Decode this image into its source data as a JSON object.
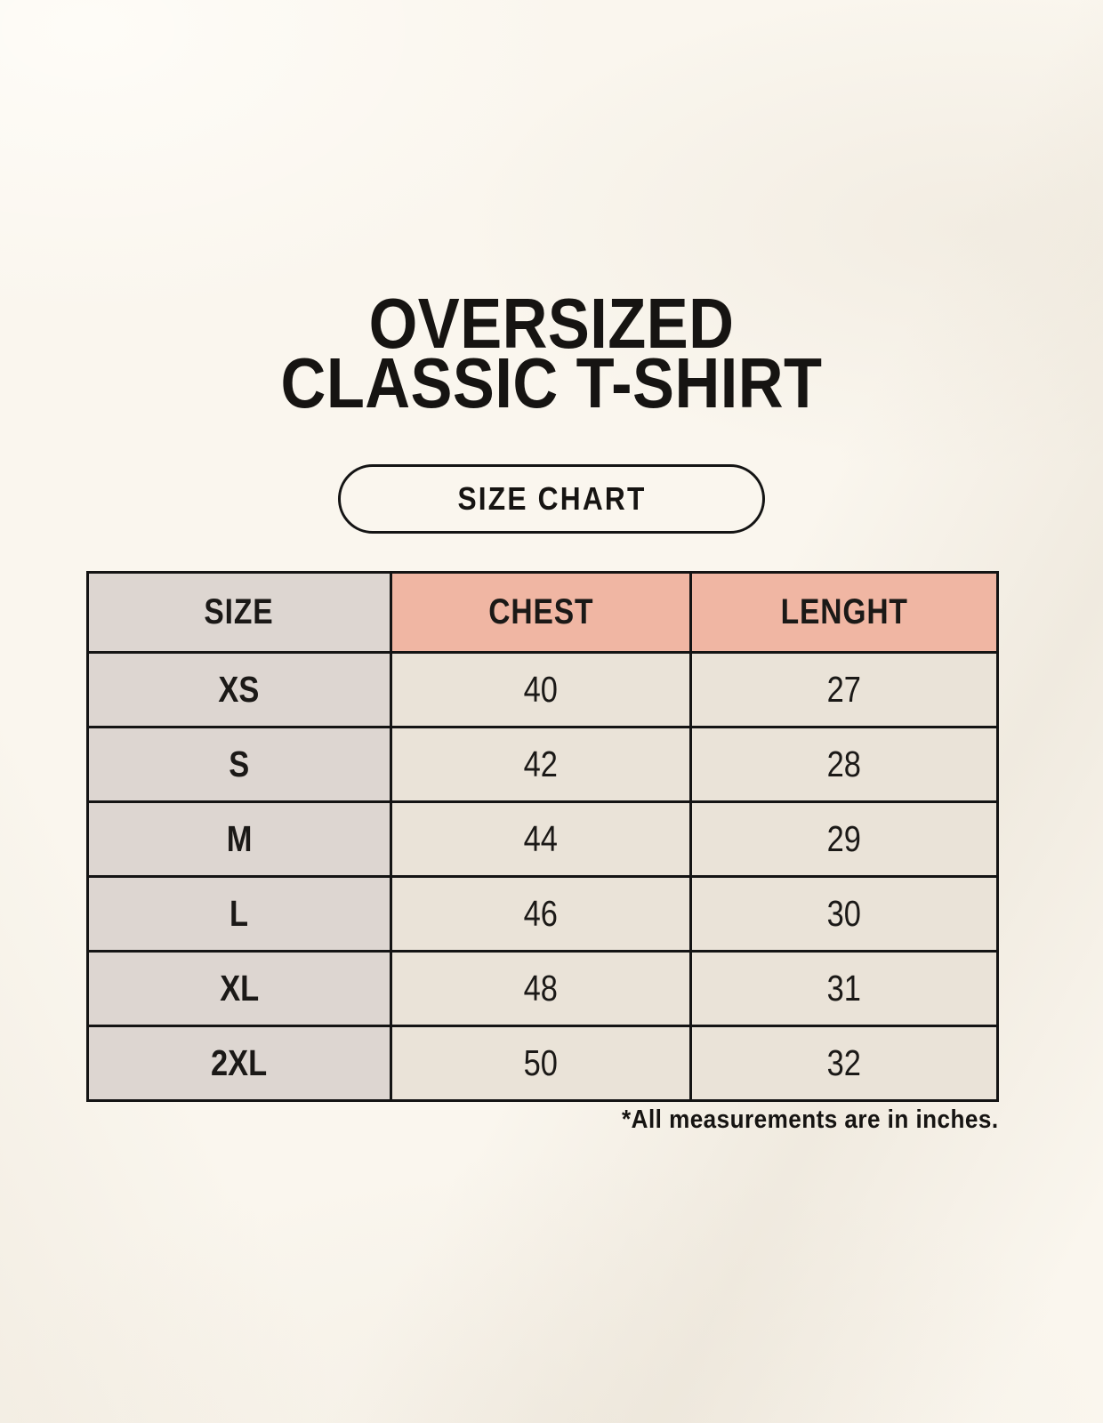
{
  "title": {
    "line1": "OVERSIZED",
    "line2": "CLASSIC T-SHIRT"
  },
  "badge": {
    "label": "SIZE CHART"
  },
  "size_table": {
    "columns": [
      {
        "label": "SIZE",
        "accent": false
      },
      {
        "label": "CHEST",
        "accent": true
      },
      {
        "label": "LENGHT",
        "accent": true
      }
    ],
    "rows": [
      {
        "size": "XS",
        "chest": "40",
        "lenght": "27"
      },
      {
        "size": "S",
        "chest": "42",
        "lenght": "28"
      },
      {
        "size": "M",
        "chest": "44",
        "lenght": "29"
      },
      {
        "size": "L",
        "chest": "46",
        "lenght": "30"
      },
      {
        "size": "XL",
        "chest": "48",
        "lenght": "31"
      },
      {
        "size": "2XL",
        "chest": "50",
        "lenght": "32"
      }
    ]
  },
  "footnote": "*All measurements are in inches.",
  "colors": {
    "page_bg": "#faf6ee",
    "size_col_bg": "#ddd6d1",
    "accent_header_bg": "#f0b6a3",
    "data_cell_bg": "#eae3d8",
    "border": "#141414",
    "text": "#1b1917"
  }
}
